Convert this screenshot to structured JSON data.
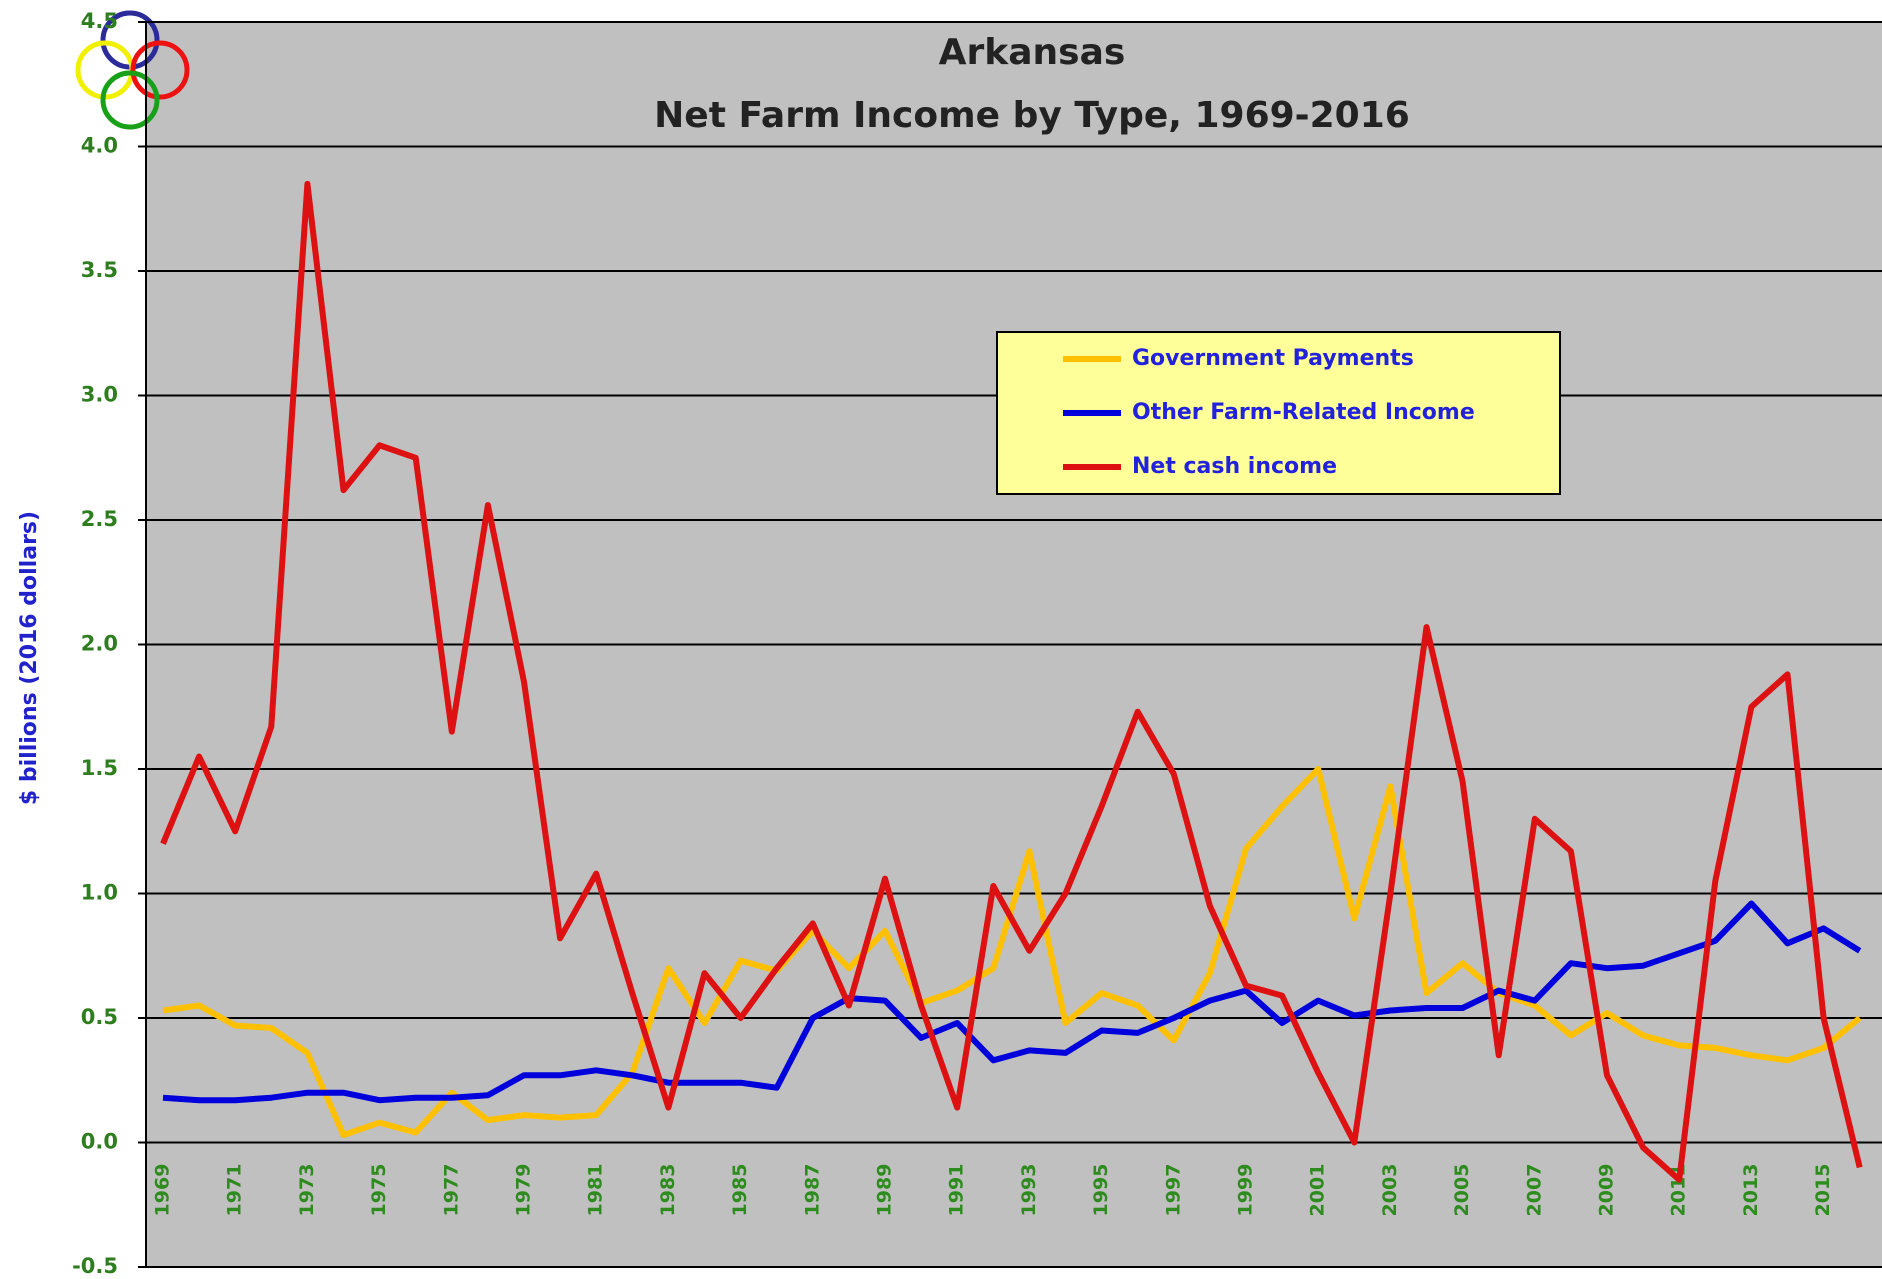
{
  "chart_data": {
    "type": "line",
    "title": [
      "Arkansas",
      "Net Farm Income by Type, 1969-2016"
    ],
    "y_label": "$ billions (2016 dollars)",
    "categories": [
      "1969",
      null,
      "1971",
      null,
      "1973",
      null,
      "1975",
      null,
      "1977",
      null,
      "1979",
      null,
      "1981",
      null,
      "1983",
      null,
      "1985",
      null,
      "1987",
      null,
      "1989",
      null,
      "1991",
      null,
      "1993",
      null,
      "1995",
      null,
      "1997",
      null,
      "1999",
      null,
      "2001",
      null,
      "2003",
      null,
      "2005",
      null,
      "2007",
      null,
      "2009",
      null,
      "2011",
      null,
      "2013",
      null,
      "2015",
      null
    ],
    "series": [
      {
        "name": "Government Payments",
        "color": "#ffc000",
        "values": [
          0.53,
          0.55,
          0.47,
          0.46,
          0.36,
          0.03,
          0.08,
          0.04,
          0.2,
          0.09,
          0.11,
          0.1,
          0.11,
          0.28,
          0.7,
          0.48,
          0.73,
          0.69,
          0.85,
          0.7,
          0.85,
          0.56,
          0.61,
          0.7,
          1.17,
          0.48,
          0.6,
          0.55,
          0.41,
          0.68,
          1.18,
          1.35,
          1.5,
          0.9,
          1.43,
          0.6,
          0.72,
          0.6,
          0.55,
          0.43,
          0.52,
          0.43,
          0.39,
          0.38,
          0.35,
          0.33,
          0.38,
          0.5
        ]
      },
      {
        "name": "Other Farm-Related Income",
        "color": "#0000dd",
        "values": [
          0.18,
          0.17,
          0.17,
          0.18,
          0.2,
          0.2,
          0.17,
          0.18,
          0.18,
          0.19,
          0.27,
          0.27,
          0.29,
          0.27,
          0.24,
          0.24,
          0.24,
          0.22,
          0.5,
          0.58,
          0.57,
          0.42,
          0.48,
          0.33,
          0.37,
          0.36,
          0.45,
          0.44,
          0.5,
          0.57,
          0.61,
          0.48,
          0.57,
          0.51,
          0.53,
          0.54,
          0.54,
          0.61,
          0.57,
          0.72,
          0.7,
          0.71,
          0.76,
          0.81,
          0.96,
          0.8,
          0.86,
          0.77
        ]
      },
      {
        "name": "Net cash income",
        "color": "#dd1111",
        "values": [
          1.2,
          1.55,
          1.25,
          1.67,
          3.85,
          2.62,
          2.8,
          2.75,
          1.65,
          2.56,
          1.85,
          0.82,
          1.08,
          0.6,
          0.14,
          0.68,
          0.5,
          0.7,
          0.88,
          0.55,
          1.06,
          0.55,
          0.14,
          1.03,
          0.77,
          1.0,
          1.35,
          1.73,
          1.48,
          0.95,
          0.63,
          0.59,
          0.28,
          0.0,
          1.0,
          2.07,
          1.45,
          0.35,
          1.3,
          1.17,
          0.27,
          -0.02,
          -0.15,
          1.05,
          1.75,
          1.88,
          0.5,
          -0.1
        ]
      }
    ],
    "ylim": [
      -0.5,
      4.5
    ],
    "yticks": [
      -0.5,
      {
        "value": 0,
        "label": "0.0"
      },
      0.5,
      {
        "value": 1,
        "label": "1.0"
      },
      1.5,
      {
        "value": 2,
        "label": "2.0"
      },
      2.5,
      {
        "value": 3,
        "label": "3.0"
      },
      3.5,
      {
        "value": 4,
        "label": "4.0"
      },
      4.5
    ],
    "grid": true,
    "legend": "upper right"
  }
}
